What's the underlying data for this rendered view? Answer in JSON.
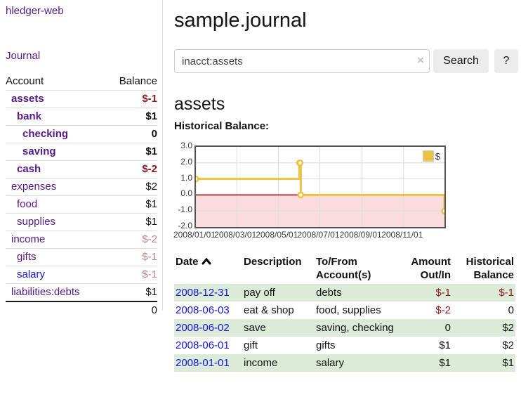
{
  "app": {
    "brand": "hledger-web",
    "nav_journal": "Journal"
  },
  "sidebar": {
    "headers": {
      "account": "Account",
      "balance": "Balance"
    },
    "accounts": [
      {
        "name": "assets",
        "depth": 1,
        "balance": "$-1",
        "bold": true,
        "link": "purple"
      },
      {
        "name": "bank",
        "depth": 2,
        "balance": "$1",
        "bold": true,
        "link": "purple"
      },
      {
        "name": "checking",
        "depth": 3,
        "balance": "0",
        "bold": true,
        "link": "purple"
      },
      {
        "name": "saving",
        "depth": 3,
        "balance": "$1",
        "bold": true,
        "link": "purple"
      },
      {
        "name": "cash",
        "depth": 2,
        "balance": "$-2",
        "bold": true,
        "link": "purple"
      },
      {
        "name": "expenses",
        "depth": 1,
        "balance": "$2",
        "bold": false,
        "link": "purple"
      },
      {
        "name": "food",
        "depth": 2,
        "balance": "$1",
        "bold": false,
        "link": "purple"
      },
      {
        "name": "supplies",
        "depth": 2,
        "balance": "$1",
        "bold": false,
        "link": "purple"
      },
      {
        "name": "income",
        "depth": 1,
        "balance": "$-2",
        "bold": false,
        "link": "purple"
      },
      {
        "name": "gifts",
        "depth": 2,
        "balance": "$-1",
        "bold": false,
        "link": "purple"
      },
      {
        "name": "salary",
        "depth": 2,
        "balance": "$-1",
        "bold": false,
        "link": "blue"
      },
      {
        "name": "liabilities:debts",
        "depth": 1,
        "balance": "$1",
        "bold": false,
        "link": "purple"
      }
    ],
    "total": "0"
  },
  "header": {
    "title": "sample.journal"
  },
  "search": {
    "value": "inacct:assets",
    "clear_icon": "×",
    "button_label": "Search",
    "help_label": "?"
  },
  "account_page": {
    "title": "assets",
    "chart_label": "Historical Balance:"
  },
  "chart_data": {
    "type": "line",
    "title": "Historical Balance",
    "step": true,
    "legend_position": "top-right",
    "series": [
      {
        "name": "$",
        "color": "#edc240",
        "points": [
          {
            "date": "2008-01-01",
            "day": 0,
            "value": 1
          },
          {
            "date": "2008-06-01",
            "day": 152,
            "value": 2
          },
          {
            "date": "2008-06-02",
            "day": 153,
            "value": 2
          },
          {
            "date": "2008-06-03",
            "day": 154,
            "value": 0
          },
          {
            "date": "2008-12-31",
            "day": 365,
            "value": -1
          }
        ]
      }
    ],
    "xmax_days": 365,
    "ylim": [
      -2,
      3
    ],
    "yticks": [
      {
        "v": 3,
        "label": "3.0"
      },
      {
        "v": 2,
        "label": "2.0"
      },
      {
        "v": 1,
        "label": "1.0"
      },
      {
        "v": 0,
        "label": "0.0"
      },
      {
        "v": -1,
        "label": "-1.0"
      },
      {
        "v": -2,
        "label": "-2.0"
      }
    ],
    "xticks": [
      {
        "day": 0,
        "label": "2008/01/01"
      },
      {
        "day": 60,
        "label": "2008/03/01"
      },
      {
        "day": 121,
        "label": "2008/05/01"
      },
      {
        "day": 182,
        "label": "2008/07/01"
      },
      {
        "day": 244,
        "label": "2008/09/01"
      },
      {
        "day": 305,
        "label": "2008/11/01"
      }
    ],
    "grid": true,
    "negative_fill": "#fbdcdc",
    "zero_line_color": "#8b0000",
    "grid_color": "#dcdcdc"
  },
  "register": {
    "columns": {
      "date": "Date",
      "description": "Description",
      "accounts": "To/From Account(s)",
      "amount": "Amount Out/In",
      "balance": "Historical Balance"
    },
    "rows": [
      {
        "date": "2008-12-31",
        "description": "pay off",
        "accounts": "debts",
        "amount": "$-1",
        "balance": "$-1"
      },
      {
        "date": "2008-06-03",
        "description": "eat & shop",
        "accounts": "food, supplies",
        "amount": "$-2",
        "balance": "0"
      },
      {
        "date": "2008-06-02",
        "description": "save",
        "accounts": "saving, checking",
        "amount": "0",
        "balance": "$2"
      },
      {
        "date": "2008-06-01",
        "description": "gift",
        "accounts": "gifts",
        "amount": "$1",
        "balance": "$2"
      },
      {
        "date": "2008-01-01",
        "description": "income",
        "accounts": "salary",
        "amount": "$1",
        "balance": "$1"
      }
    ]
  }
}
